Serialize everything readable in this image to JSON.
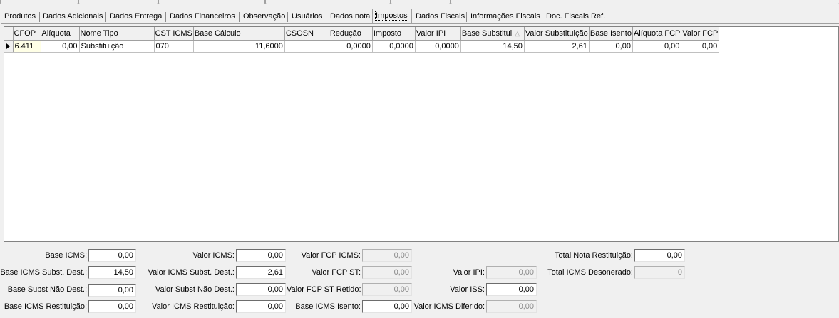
{
  "tabs": [
    {
      "label": "Produtos"
    },
    {
      "label": "Dados Adicionais"
    },
    {
      "label": "Dados Entrega"
    },
    {
      "label": "Dados Financeiros"
    },
    {
      "label": "Observação"
    },
    {
      "label": "Usuários"
    },
    {
      "label": "Dados nota"
    },
    {
      "label": "Impostos"
    },
    {
      "label": "Dados Fiscais"
    },
    {
      "label": "Informações Fiscais"
    },
    {
      "label": "Doc. Fiscais Ref."
    }
  ],
  "active_tab": "Impostos",
  "grid": {
    "columns": [
      "CFOP",
      "Alíquota",
      "Nome Tipo",
      "CST ICMS",
      "Base Cálculo",
      "CSOSN",
      "Redução",
      "Imposto",
      "Valor IPI",
      "Base Substitui",
      "Valor Substituição",
      "Base Isento",
      "Alíquota FCP",
      "Valor FCP"
    ],
    "sorted_column": "Base Substitui",
    "sort_glyph": "△",
    "rows": [
      [
        "6.411",
        "0,00",
        "Substituição",
        "070",
        "11,6000",
        "",
        "0,0000",
        "0,0000",
        "0,0000",
        "14,50",
        "2,61",
        "0,00",
        "0,00",
        "0,00"
      ]
    ]
  },
  "fields": {
    "base_icms": {
      "label": "Base ICMS:",
      "value": "0,00"
    },
    "base_icms_subst_dest": {
      "label": "Base ICMS Subst. Dest.:",
      "value": "14,50"
    },
    "base_subst_nao_dest": {
      "label": "Base Subst Não Dest.:",
      "value": "0,00"
    },
    "base_icms_restituicao": {
      "label": "Base ICMS Restituição:",
      "value": "0,00"
    },
    "valor_icms": {
      "label": "Valor ICMS:",
      "value": "0,00"
    },
    "valor_icms_subst_dest": {
      "label": "Valor ICMS Subst. Dest.:",
      "value": "2,61"
    },
    "valor_subst_nao_dest": {
      "label": "Valor Subst Não Dest.:",
      "value": "0,00"
    },
    "valor_icms_restituicao": {
      "label": "Valor ICMS Restituição:",
      "value": "0,00"
    },
    "valor_fcp_icms": {
      "label": "Valor FCP ICMS:",
      "value": "0,00"
    },
    "valor_fcp_st": {
      "label": "Valor FCP ST:",
      "value": "0,00"
    },
    "valor_fcp_st_retido": {
      "label": "Valor FCP ST Retido:",
      "value": "0,00"
    },
    "base_icms_isento": {
      "label": "Base ICMS Isento:",
      "value": "0,00"
    },
    "valor_ipi": {
      "label": "Valor IPI:",
      "value": "0,00"
    },
    "valor_iss": {
      "label": "Valor ISS:",
      "value": "0,00"
    },
    "valor_icms_diferido": {
      "label": "Valor ICMS Diferido:",
      "value": "0,00"
    },
    "total_nota_restituicao": {
      "label": "Total Nota Restituição:",
      "value": "0,00"
    },
    "total_icms_desonerado": {
      "label": "Total ICMS Desonerado:",
      "value": "0"
    }
  },
  "colors": {
    "window_bg": "#f0f0f0",
    "grid_bg": "#ffffff",
    "cfop_cell_bg": "#ffffe6",
    "disabled_text": "#8a8a8a"
  }
}
